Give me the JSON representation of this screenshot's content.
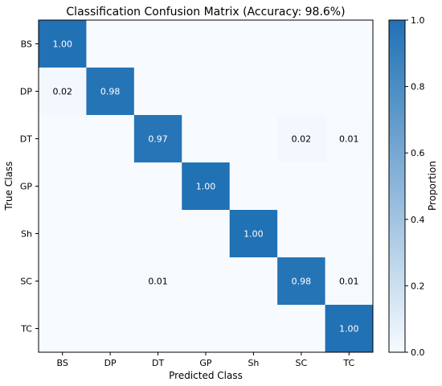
{
  "chart_data": {
    "type": "heatmap",
    "title": "Classification Confusion Matrix (Accuracy: 98.6%)",
    "xlabel": "Predicted Class",
    "ylabel": "True Class",
    "x_categories": [
      "BS",
      "DP",
      "DT",
      "GP",
      "Sh",
      "SC",
      "TC"
    ],
    "y_categories": [
      "BS",
      "DP",
      "DT",
      "GP",
      "Sh",
      "SC",
      "TC"
    ],
    "values": [
      [
        1.0,
        0.0,
        0.0,
        0.0,
        0.0,
        0.0,
        0.0
      ],
      [
        0.02,
        0.98,
        0.0,
        0.0,
        0.0,
        0.0,
        0.0
      ],
      [
        0.0,
        0.0,
        0.97,
        0.0,
        0.0,
        0.02,
        0.01
      ],
      [
        0.0,
        0.0,
        0.0,
        1.0,
        0.0,
        0.0,
        0.0
      ],
      [
        0.0,
        0.0,
        0.0,
        0.0,
        1.0,
        0.0,
        0.0
      ],
      [
        0.0,
        0.0,
        0.01,
        0.0,
        0.0,
        0.98,
        0.01
      ],
      [
        0.0,
        0.0,
        0.0,
        0.0,
        0.0,
        0.0,
        1.0
      ]
    ],
    "cell_labels": [
      [
        "1.00",
        "",
        "",
        "",
        "",
        "",
        ""
      ],
      [
        "0.02",
        "0.98",
        "",
        "",
        "",
        "",
        ""
      ],
      [
        "",
        "",
        "0.97",
        "",
        "",
        "0.02",
        "0.01"
      ],
      [
        "",
        "",
        "",
        "1.00",
        "",
        "",
        ""
      ],
      [
        "",
        "",
        "",
        "",
        "1.00",
        "",
        ""
      ],
      [
        "",
        "",
        "0.01",
        "",
        "",
        "0.98",
        "0.01"
      ],
      [
        "",
        "",
        "",
        "",
        "",
        "",
        "1.00"
      ]
    ],
    "colorbar": {
      "label": "Proportion",
      "range": [
        0.0,
        1.0
      ],
      "ticks": [
        "0.0",
        "0.2",
        "0.4",
        "0.6",
        "0.8",
        "1.0"
      ]
    },
    "colormap": {
      "low": "#f7fbff",
      "high": "#2171b5"
    }
  }
}
